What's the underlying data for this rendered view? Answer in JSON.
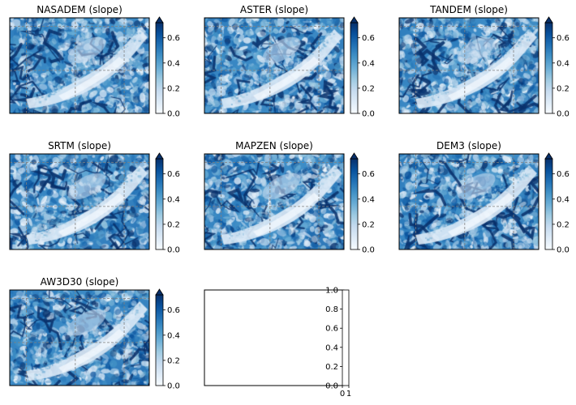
{
  "chart_data": [
    {
      "type": "heatmap",
      "title": "NASADEM (slope)",
      "seed": 11,
      "colorbar": {
        "ticks": [
          0.0,
          0.2,
          0.4,
          0.6
        ],
        "tick_labels": [
          "0.0",
          "0.2",
          "0.4",
          "0.6"
        ],
        "range": [
          0.0,
          0.72
        ],
        "extend": "max"
      },
      "grid": true
    },
    {
      "type": "heatmap",
      "title": "ASTER (slope)",
      "seed": 23,
      "colorbar": {
        "ticks": [
          0.0,
          0.2,
          0.4,
          0.6
        ],
        "tick_labels": [
          "0.0",
          "0.2",
          "0.4",
          "0.6"
        ],
        "range": [
          0.0,
          0.72
        ],
        "extend": "max"
      },
      "grid": true
    },
    {
      "type": "heatmap",
      "title": "TANDEM (slope)",
      "seed": 37,
      "colorbar": {
        "ticks": [
          0.0,
          0.2,
          0.4,
          0.6
        ],
        "tick_labels": [
          "0.0",
          "0.2",
          "0.4",
          "0.6"
        ],
        "range": [
          0.0,
          0.72
        ],
        "extend": "max"
      },
      "grid": true
    },
    {
      "type": "heatmap",
      "title": "SRTM (slope)",
      "seed": 41,
      "colorbar": {
        "ticks": [
          0.0,
          0.2,
          0.4,
          0.6
        ],
        "tick_labels": [
          "0.0",
          "0.2",
          "0.4",
          "0.6"
        ],
        "range": [
          0.0,
          0.72
        ],
        "extend": "max"
      },
      "grid": true
    },
    {
      "type": "heatmap",
      "title": "MAPZEN (slope)",
      "seed": 53,
      "colorbar": {
        "ticks": [
          0.0,
          0.2,
          0.4,
          0.6
        ],
        "tick_labels": [
          "0.0",
          "0.2",
          "0.4",
          "0.6"
        ],
        "range": [
          0.0,
          0.72
        ],
        "extend": "max"
      },
      "grid": true
    },
    {
      "type": "heatmap",
      "title": "DEM3 (slope)",
      "seed": 67,
      "colorbar": {
        "ticks": [
          0.0,
          0.2,
          0.4,
          0.6
        ],
        "tick_labels": [
          "0.0",
          "0.2",
          "0.4",
          "0.6"
        ],
        "range": [
          0.0,
          0.72
        ],
        "extend": "max"
      },
      "grid": true
    },
    {
      "type": "heatmap",
      "title": "AW3D30 (slope)",
      "seed": 79,
      "colorbar": {
        "ticks": [
          0.0,
          0.2,
          0.4,
          0.6
        ],
        "tick_labels": [
          "0.0",
          "0.2",
          "0.4",
          "0.6"
        ],
        "range": [
          0.0,
          0.72
        ],
        "extend": "max"
      },
      "grid": true
    },
    {
      "type": "empty",
      "title": "",
      "colorbar": {
        "ticks": [
          0.0,
          0.2,
          0.4,
          0.6,
          0.8,
          1.0
        ],
        "tick_labels": [
          "0.0",
          "0.2",
          "0.4",
          "0.6",
          "0.8",
          "1.0"
        ],
        "range": [
          0.0,
          1.0
        ],
        "xticks": [
          "0",
          "1"
        ]
      }
    }
  ],
  "colormap": {
    "name": "Blues",
    "stops": [
      "#f7fbff",
      "#deebf7",
      "#c6dbef",
      "#9ecae1",
      "#6baed6",
      "#4292c6",
      "#2171b5",
      "#08519c",
      "#08306b"
    ]
  },
  "grid_color": "#808080"
}
